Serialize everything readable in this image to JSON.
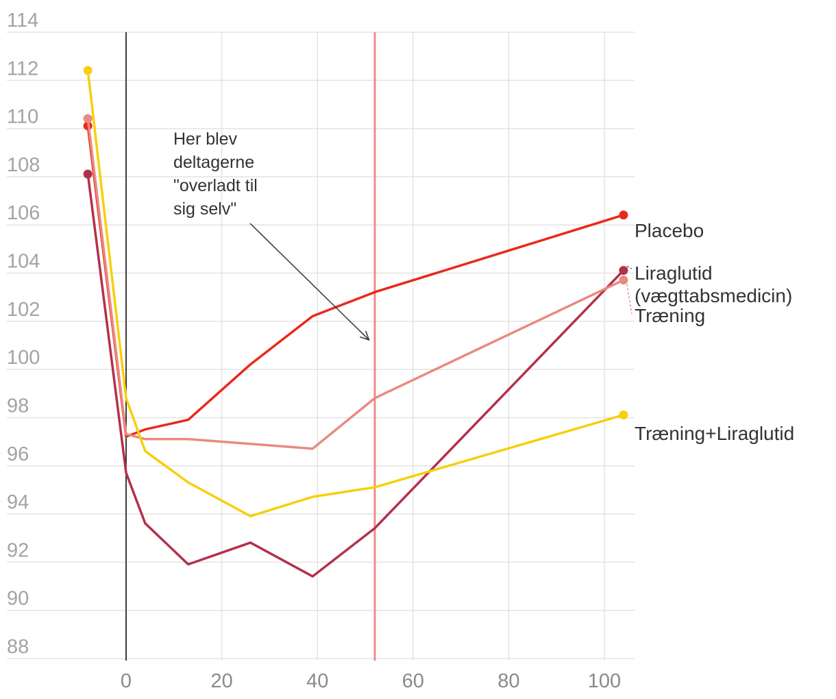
{
  "chart_data": {
    "type": "line",
    "x_axis": {
      "range": [
        -8,
        106
      ],
      "ticks": [
        0,
        20,
        40,
        60,
        80,
        100
      ]
    },
    "y_axis": {
      "range": [
        87.5,
        114.5
      ],
      "ticks": [
        88,
        90,
        92,
        94,
        96,
        98,
        100,
        102,
        104,
        106,
        108,
        110,
        112,
        114
      ]
    },
    "grid": true,
    "reference_lines": [
      {
        "x": 0,
        "color": "#000000"
      },
      {
        "x": 52,
        "color": "#f08a86"
      }
    ],
    "annotation": {
      "lines": [
        "Her blev",
        "deltagerne",
        "\"overladt til",
        "sig selv\""
      ],
      "arrow_to": {
        "x": 51.5,
        "y": 101
      }
    },
    "series": [
      {
        "name": "Placebo",
        "color": "#e8291c",
        "x": [
          -8,
          0,
          4,
          13,
          26,
          39,
          52,
          104
        ],
        "y": [
          109.6,
          96.7,
          97.0,
          97.4,
          99.7,
          101.7,
          102.7,
          105.9
        ]
      },
      {
        "name": "Liraglutid\n(vægttabsmedicin)",
        "color": "#b3304a",
        "x": [
          -8,
          0,
          4,
          13,
          26,
          39,
          52,
          104
        ],
        "y": [
          107.6,
          95.2,
          93.1,
          91.4,
          92.3,
          90.9,
          92.9,
          103.6
        ]
      },
      {
        "name": "Træning",
        "color": "#e98a80",
        "x": [
          -8,
          0,
          4,
          13,
          26,
          39,
          52,
          104
        ],
        "y": [
          109.9,
          96.8,
          96.6,
          96.6,
          96.4,
          96.2,
          98.3,
          103.2
        ]
      },
      {
        "name": "Træning+Liraglutid",
        "color": "#f7cf0c",
        "x": [
          -8,
          0,
          4,
          13,
          26,
          39,
          52,
          104
        ],
        "y": [
          111.9,
          98.3,
          96.1,
          94.8,
          93.4,
          94.2,
          94.6,
          97.6
        ]
      }
    ]
  }
}
